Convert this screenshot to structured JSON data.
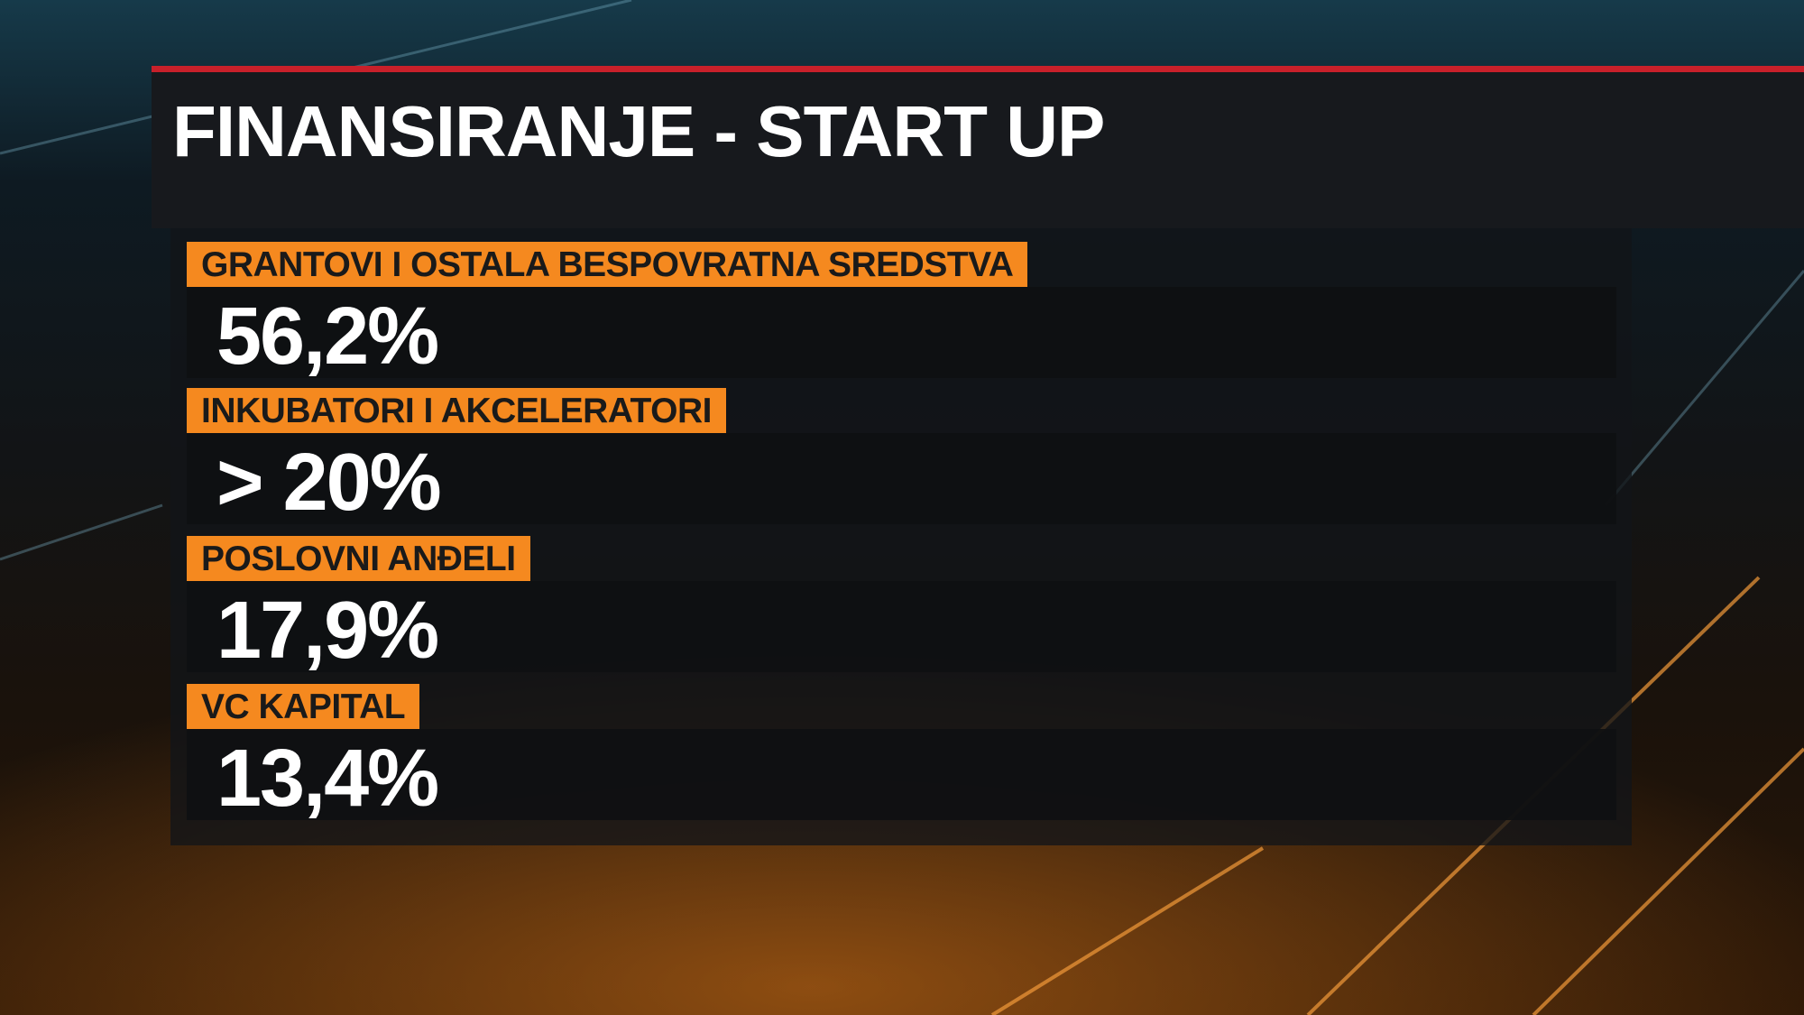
{
  "header": {
    "title": "FINANSIRANJE - START UP"
  },
  "items": [
    {
      "label": "GRANTOVI I OSTALA BESPOVRATNA SREDSTVA",
      "value": "56,2%"
    },
    {
      "label": "INKUBATORI I AKCELERATORI",
      "value": "> 20%"
    },
    {
      "label": "POSLOVNI ANĐELI",
      "value": "17,9%"
    },
    {
      "label": "VC KAPITAL",
      "value": "13,4%"
    }
  ]
}
